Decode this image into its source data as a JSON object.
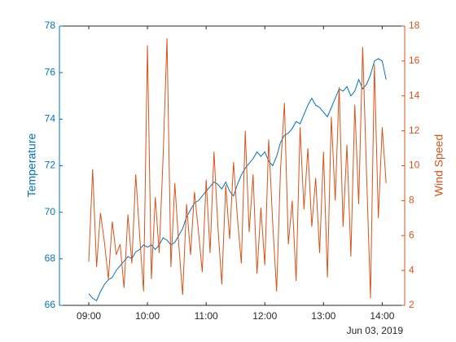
{
  "chart_data": {
    "type": "line",
    "x_secondary_label": "Jun 03, 2019",
    "ylabel": "Temperature",
    "y2label": "Wind Speed",
    "xlim": [
      "08:30",
      "14:23"
    ],
    "xticks": [
      "09:00",
      "10:00",
      "11:00",
      "12:00",
      "13:00",
      "14:00"
    ],
    "ylim": [
      66,
      78
    ],
    "yticks": [
      66,
      68,
      70,
      72,
      74,
      76,
      78
    ],
    "y2lim": [
      2,
      18
    ],
    "y2ticks": [
      2,
      4,
      6,
      8,
      10,
      12,
      14,
      16,
      18
    ],
    "x": [
      "09:00",
      "09:04",
      "09:08",
      "09:12",
      "09:16",
      "09:20",
      "09:24",
      "09:28",
      "09:32",
      "09:36",
      "09:40",
      "09:44",
      "09:48",
      "09:52",
      "09:56",
      "10:00",
      "10:04",
      "10:08",
      "10:12",
      "10:16",
      "10:20",
      "10:24",
      "10:28",
      "10:32",
      "10:36",
      "10:40",
      "10:44",
      "10:48",
      "10:52",
      "10:56",
      "11:00",
      "11:04",
      "11:08",
      "11:12",
      "11:16",
      "11:20",
      "11:24",
      "11:28",
      "11:32",
      "11:36",
      "11:40",
      "11:44",
      "11:48",
      "11:52",
      "11:56",
      "12:00",
      "12:04",
      "12:08",
      "12:12",
      "12:16",
      "12:20",
      "12:24",
      "12:28",
      "12:32",
      "12:36",
      "12:40",
      "12:44",
      "12:48",
      "12:52",
      "12:56",
      "13:00",
      "13:04",
      "13:08",
      "13:12",
      "13:16",
      "13:20",
      "13:24",
      "13:28",
      "13:32",
      "13:36",
      "13:40",
      "13:44",
      "13:48",
      "13:52",
      "13:56",
      "14:00",
      "14:04"
    ],
    "series": [
      {
        "name": "Temperature",
        "color": "#0072BD",
        "axis": "y",
        "values": [
          66.5,
          66.3,
          66.2,
          66.6,
          66.9,
          67.1,
          67.2,
          67.5,
          67.7,
          67.9,
          68.1,
          68.0,
          68.3,
          68.4,
          68.6,
          68.5,
          68.6,
          68.4,
          68.6,
          68.9,
          68.8,
          68.6,
          68.7,
          69.0,
          69.3,
          69.8,
          70.1,
          70.4,
          70.5,
          70.7,
          70.9,
          71.1,
          71.3,
          71.2,
          71.0,
          71.3,
          70.9,
          70.7,
          71.2,
          71.6,
          71.9,
          72.1,
          72.3,
          72.6,
          72.4,
          72.6,
          72.2,
          72.0,
          72.4,
          73.0,
          73.3,
          73.4,
          73.6,
          73.9,
          73.8,
          74.2,
          74.6,
          74.9,
          74.6,
          74.5,
          74.3,
          74.1,
          74.5,
          74.9,
          75.3,
          75.2,
          75.4,
          75.0,
          75.2,
          75.7,
          75.3,
          75.5,
          75.9,
          76.5,
          76.6,
          76.5,
          75.7
        ]
      },
      {
        "name": "Wind Speed",
        "color": "#D95319",
        "axis": "y2",
        "values": [
          4.5,
          9.8,
          4.2,
          7.3,
          5.6,
          3.5,
          6.8,
          4.9,
          5.5,
          3.0,
          7.2,
          4.4,
          9.5,
          6.0,
          2.8,
          16.9,
          3.5,
          8.2,
          5.0,
          10.5,
          17.3,
          4.2,
          9.0,
          5.5,
          2.6,
          7.8,
          4.9,
          8.5,
          6.3,
          3.9,
          9.2,
          5.0,
          10.8,
          6.5,
          3.2,
          8.9,
          5.8,
          10.2,
          7.0,
          4.4,
          12.0,
          6.2,
          9.5,
          3.8,
          7.6,
          4.3,
          11.5,
          6.8,
          2.8,
          9.8,
          13.6,
          5.5,
          8.0,
          3.4,
          12.2,
          7.5,
          11.0,
          6.5,
          9.3,
          5.0,
          10.8,
          3.6,
          12.8,
          8.0,
          14.5,
          6.5,
          11.2,
          4.8,
          13.5,
          7.8,
          16.8,
          9.5,
          2.4,
          15.8,
          7.0,
          12.2,
          9.0
        ]
      }
    ]
  }
}
